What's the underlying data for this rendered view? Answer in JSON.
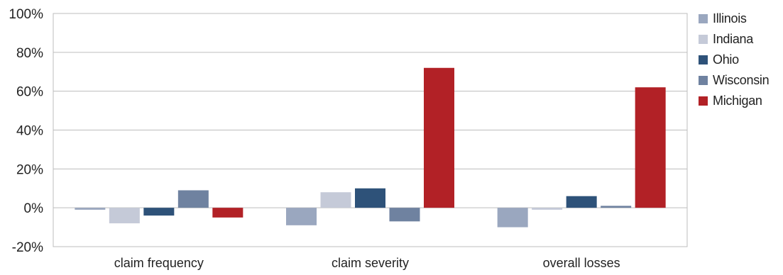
{
  "chart_data": {
    "type": "bar",
    "categories": [
      "claim frequency",
      "claim severity",
      "overall losses"
    ],
    "series": [
      {
        "name": "Illinois",
        "color": "#9aa7bf",
        "values": [
          -1,
          -9,
          -10
        ]
      },
      {
        "name": "Indiana",
        "color": "#c5cad8",
        "values": [
          -8,
          8,
          -1
        ]
      },
      {
        "name": "Ohio",
        "color": "#2e5279",
        "values": [
          -4,
          10,
          6
        ]
      },
      {
        "name": "Wisconsin",
        "color": "#6f82a0",
        "values": [
          9,
          -7,
          1
        ]
      },
      {
        "name": "Michigan",
        "color": "#b22126",
        "values": [
          -5,
          72,
          62
        ]
      }
    ],
    "ylim": [
      -20,
      100
    ],
    "yticks": [
      -20,
      0,
      20,
      40,
      60,
      80,
      100
    ],
    "ytick_labels": [
      "-20%",
      "0%",
      "20%",
      "40%",
      "60%",
      "80%",
      "100%"
    ],
    "grid": true,
    "legend_position": "right",
    "title": "",
    "xlabel": "",
    "ylabel": ""
  }
}
